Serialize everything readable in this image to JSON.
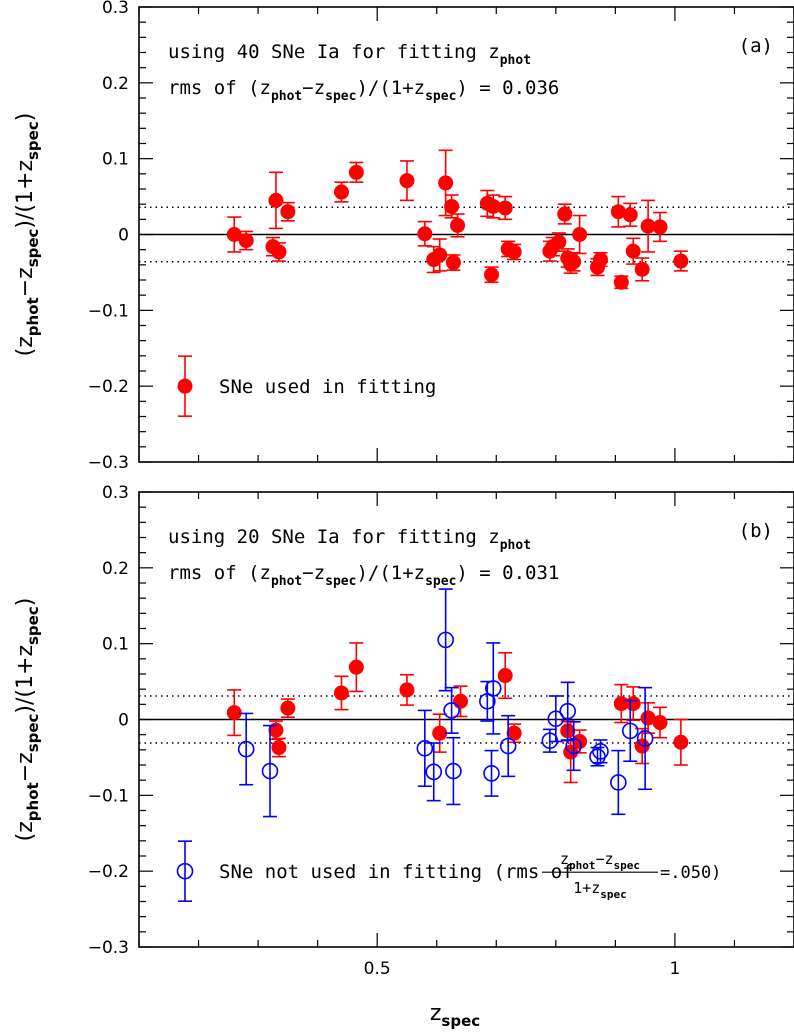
{
  "chart_data": [
    {
      "type": "scatter",
      "panel_label": "(a)",
      "annotation_line1": {
        "text": "using 40 SNe Ia for fitting z",
        "sub": "phot"
      },
      "annotation_line2": {
        "parts": [
          "rms of (z",
          "phot",
          "−z",
          "spec",
          ")/(1+z",
          "spec",
          ") = 0.036"
        ]
      },
      "ylabel": {
        "parts": [
          "(z",
          "phot",
          "−z",
          "spec",
          ")/(1+z",
          "spec",
          ")"
        ]
      },
      "xlim": [
        0.1,
        1.2
      ],
      "ylim": [
        -0.3,
        0.3
      ],
      "yticks": [
        "0.3",
        "0.2",
        "0.1",
        "0",
        "−0.1",
        "−0.2",
        "−0.3"
      ],
      "xticks": [],
      "ref_lines": {
        "solid": 0,
        "dotted": [
          0.036,
          -0.036
        ]
      },
      "legend": {
        "label": "SNe used in fitting",
        "placement": "lower-left"
      },
      "series": [
        {
          "name": "SNe used in fitting",
          "color": "#ff0000",
          "marker": "filled-circle",
          "points": [
            [
              0.26,
              0.0,
              0.023
            ],
            [
              0.28,
              -0.008,
              0.012
            ],
            [
              0.325,
              -0.016,
              0.012
            ],
            [
              0.33,
              0.045,
              0.037
            ],
            [
              0.335,
              -0.023,
              0.012
            ],
            [
              0.35,
              0.03,
              0.012
            ],
            [
              0.44,
              0.056,
              0.013
            ],
            [
              0.465,
              0.082,
              0.013
            ],
            [
              0.55,
              0.071,
              0.026
            ],
            [
              0.58,
              0.001,
              0.016
            ],
            [
              0.595,
              -0.033,
              0.017
            ],
            [
              0.605,
              -0.027,
              0.021
            ],
            [
              0.615,
              0.068,
              0.043
            ],
            [
              0.625,
              0.037,
              0.015
            ],
            [
              0.628,
              -0.037,
              0.01
            ],
            [
              0.635,
              0.012,
              0.015
            ],
            [
              0.685,
              0.041,
              0.017
            ],
            [
              0.692,
              -0.053,
              0.01
            ],
            [
              0.695,
              0.037,
              0.015
            ],
            [
              0.715,
              0.035,
              0.015
            ],
            [
              0.72,
              -0.019,
              0.01
            ],
            [
              0.73,
              -0.023,
              0.01
            ],
            [
              0.79,
              -0.022,
              0.013
            ],
            [
              0.795,
              -0.016,
              0.012
            ],
            [
              0.805,
              -0.01,
              0.012
            ],
            [
              0.815,
              0.027,
              0.013
            ],
            [
              0.82,
              -0.031,
              0.012
            ],
            [
              0.825,
              -0.039,
              0.012
            ],
            [
              0.83,
              -0.036,
              0.012
            ],
            [
              0.84,
              0.0,
              0.025
            ],
            [
              0.87,
              -0.043,
              0.011
            ],
            [
              0.875,
              -0.033,
              0.009
            ],
            [
              0.905,
              0.03,
              0.02
            ],
            [
              0.91,
              -0.063,
              0.008
            ],
            [
              0.925,
              0.026,
              0.015
            ],
            [
              0.93,
              -0.022,
              0.017
            ],
            [
              0.945,
              -0.046,
              0.015
            ],
            [
              0.955,
              0.011,
              0.034
            ],
            [
              0.975,
              0.01,
              0.019
            ],
            [
              1.01,
              -0.035,
              0.013
            ]
          ]
        }
      ]
    },
    {
      "type": "scatter",
      "panel_label": "(b)",
      "annotation_line1": {
        "text": "using 20 SNe Ia for fitting z",
        "sub": "phot"
      },
      "annotation_line2": {
        "parts": [
          "rms of (z",
          "phot",
          "−z",
          "spec",
          ")/(1+z",
          "spec",
          ") = 0.031"
        ]
      },
      "ylabel": {
        "parts": [
          "(z",
          "phot",
          "−z",
          "spec",
          ")/(1+z",
          "spec",
          ")"
        ]
      },
      "xlabel": {
        "text": "z",
        "sub": "spec"
      },
      "xlim": [
        0.1,
        1.2
      ],
      "ylim": [
        -0.3,
        0.3
      ],
      "yticks": [
        "0.3",
        "0.2",
        "0.1",
        "0",
        "−0.1",
        "−0.2",
        "−0.3"
      ],
      "xticks": [
        {
          "value": 0.5,
          "label": "0.5"
        },
        {
          "value": 1,
          "label": "1"
        }
      ],
      "ref_lines": {
        "solid": 0,
        "dotted": [
          0.031,
          -0.031
        ]
      },
      "legend": {
        "label_prefix": "SNe not used in fitting (rms of",
        "frac_num": [
          "z",
          "phot",
          "−z",
          "spec"
        ],
        "frac_den": [
          "1+z",
          "spec"
        ],
        "label_suffix": "=.050)",
        "placement": "lower-left"
      },
      "series": [
        {
          "name": "SNe used in fitting",
          "color": "#ff0000",
          "marker": "filled-circle",
          "points": [
            [
              0.26,
              0.009,
              0.03
            ],
            [
              0.33,
              -0.014,
              0.012
            ],
            [
              0.335,
              -0.037,
              0.012
            ],
            [
              0.35,
              0.015,
              0.012
            ],
            [
              0.44,
              0.035,
              0.022
            ],
            [
              0.465,
              0.069,
              0.032
            ],
            [
              0.55,
              0.039,
              0.02
            ],
            [
              0.605,
              -0.018,
              0.025
            ],
            [
              0.64,
              0.024,
              0.02
            ],
            [
              0.715,
              0.058,
              0.03
            ],
            [
              0.73,
              -0.018,
              0.012
            ],
            [
              0.82,
              -0.015,
              0.013
            ],
            [
              0.825,
              -0.043,
              0.04
            ],
            [
              0.84,
              -0.029,
              0.015
            ],
            [
              0.91,
              0.021,
              0.025
            ],
            [
              0.93,
              0.021,
              0.022
            ],
            [
              0.945,
              -0.035,
              0.023
            ],
            [
              0.955,
              0.002,
              0.02
            ],
            [
              0.975,
              -0.004,
              0.02
            ],
            [
              1.01,
              -0.03,
              0.03
            ]
          ]
        },
        {
          "name": "SNe not used in fitting",
          "color": "#0000ff",
          "marker": "open-circle",
          "points": [
            [
              0.28,
              -0.039,
              0.047
            ],
            [
              0.32,
              -0.068,
              0.06
            ],
            [
              0.58,
              -0.038,
              0.05
            ],
            [
              0.595,
              -0.069,
              0.038
            ],
            [
              0.615,
              0.105,
              0.067
            ],
            [
              0.625,
              0.012,
              0.03
            ],
            [
              0.628,
              -0.068,
              0.044
            ],
            [
              0.685,
              0.024,
              0.026
            ],
            [
              0.692,
              -0.071,
              0.03
            ],
            [
              0.695,
              0.041,
              0.06
            ],
            [
              0.72,
              -0.035,
              0.04
            ],
            [
              0.79,
              -0.028,
              0.015
            ],
            [
              0.8,
              0.001,
              0.03
            ],
            [
              0.82,
              0.011,
              0.038
            ],
            [
              0.83,
              -0.035,
              0.032
            ],
            [
              0.87,
              -0.049,
              0.012
            ],
            [
              0.875,
              -0.042,
              0.015
            ],
            [
              0.905,
              -0.083,
              0.042
            ],
            [
              0.925,
              -0.015,
              0.04
            ],
            [
              0.95,
              -0.025,
              0.067
            ]
          ]
        }
      ]
    }
  ]
}
